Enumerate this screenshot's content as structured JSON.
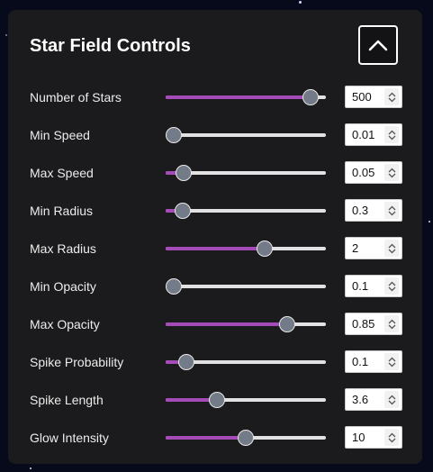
{
  "panel": {
    "title": "Star Field Controls",
    "collapse_icon": "chevron-up-icon"
  },
  "colors": {
    "panel_bg": "#1b1b1d",
    "accent": "#a54bb8",
    "track": "#e2e2e2",
    "thumb": "#737a88"
  },
  "controls": [
    {
      "key": "number-of-stars",
      "label": "Number of Stars",
      "value": "500",
      "level": 0.95
    },
    {
      "key": "min-speed",
      "label": "Min Speed",
      "value": "0.01",
      "level": 0.0
    },
    {
      "key": "max-speed",
      "label": "Max Speed",
      "value": "0.05",
      "level": 0.07
    },
    {
      "key": "min-radius",
      "label": "Min Radius",
      "value": "0.3",
      "level": 0.06
    },
    {
      "key": "max-radius",
      "label": "Max Radius",
      "value": "2",
      "level": 0.63
    },
    {
      "key": "min-opacity",
      "label": "Min Opacity",
      "value": "0.1",
      "level": 0.0
    },
    {
      "key": "max-opacity",
      "label": "Max Opacity",
      "value": "0.85",
      "level": 0.79
    },
    {
      "key": "spike-probability",
      "label": "Spike Probability",
      "value": "0.1",
      "level": 0.09
    },
    {
      "key": "spike-length",
      "label": "Spike Length",
      "value": "3.6",
      "level": 0.3
    },
    {
      "key": "glow-intensity",
      "label": "Glow Intensity",
      "value": "10",
      "level": 0.5
    }
  ]
}
